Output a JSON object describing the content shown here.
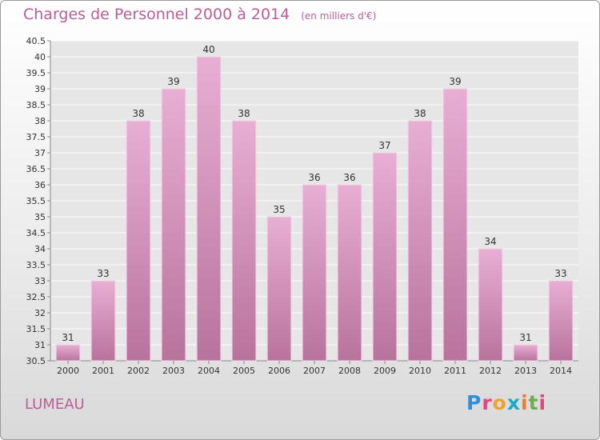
{
  "header": {
    "title": "Charges de Personnel 2000 à 2014",
    "subtitle": "(en milliers d'€)"
  },
  "footer": {
    "location": "LUMEAU",
    "logo_letters": [
      "P",
      "r",
      "o",
      "x",
      "i",
      "t",
      "i"
    ],
    "logo_colors": [
      "#2f8fd8",
      "#e0487c",
      "#f2a12b",
      "#1aa9c7",
      "#f07a2a",
      "#6ab04c",
      "#e0487c"
    ]
  },
  "chart_data": {
    "type": "bar",
    "title": "Charges de Personnel 2000 à 2014",
    "subtitle": "(en milliers d'€)",
    "categories": [
      "2000",
      "2001",
      "2002",
      "2003",
      "2004",
      "2005",
      "2006",
      "2007",
      "2008",
      "2009",
      "2010",
      "2011",
      "2012",
      "2013",
      "2014"
    ],
    "values": [
      31,
      33,
      38,
      39,
      40,
      38,
      35,
      36,
      36,
      37,
      38,
      39,
      34,
      31,
      33
    ],
    "ylim": [
      30.5,
      40.5
    ],
    "yticks": [
      30.5,
      31,
      31.5,
      32,
      32.5,
      33,
      33.5,
      34,
      34.5,
      35,
      35.5,
      36,
      36.5,
      37,
      37.5,
      38,
      38.5,
      39,
      39.5,
      40,
      40.5
    ],
    "grid": true,
    "bar_color": "#d896bf"
  }
}
